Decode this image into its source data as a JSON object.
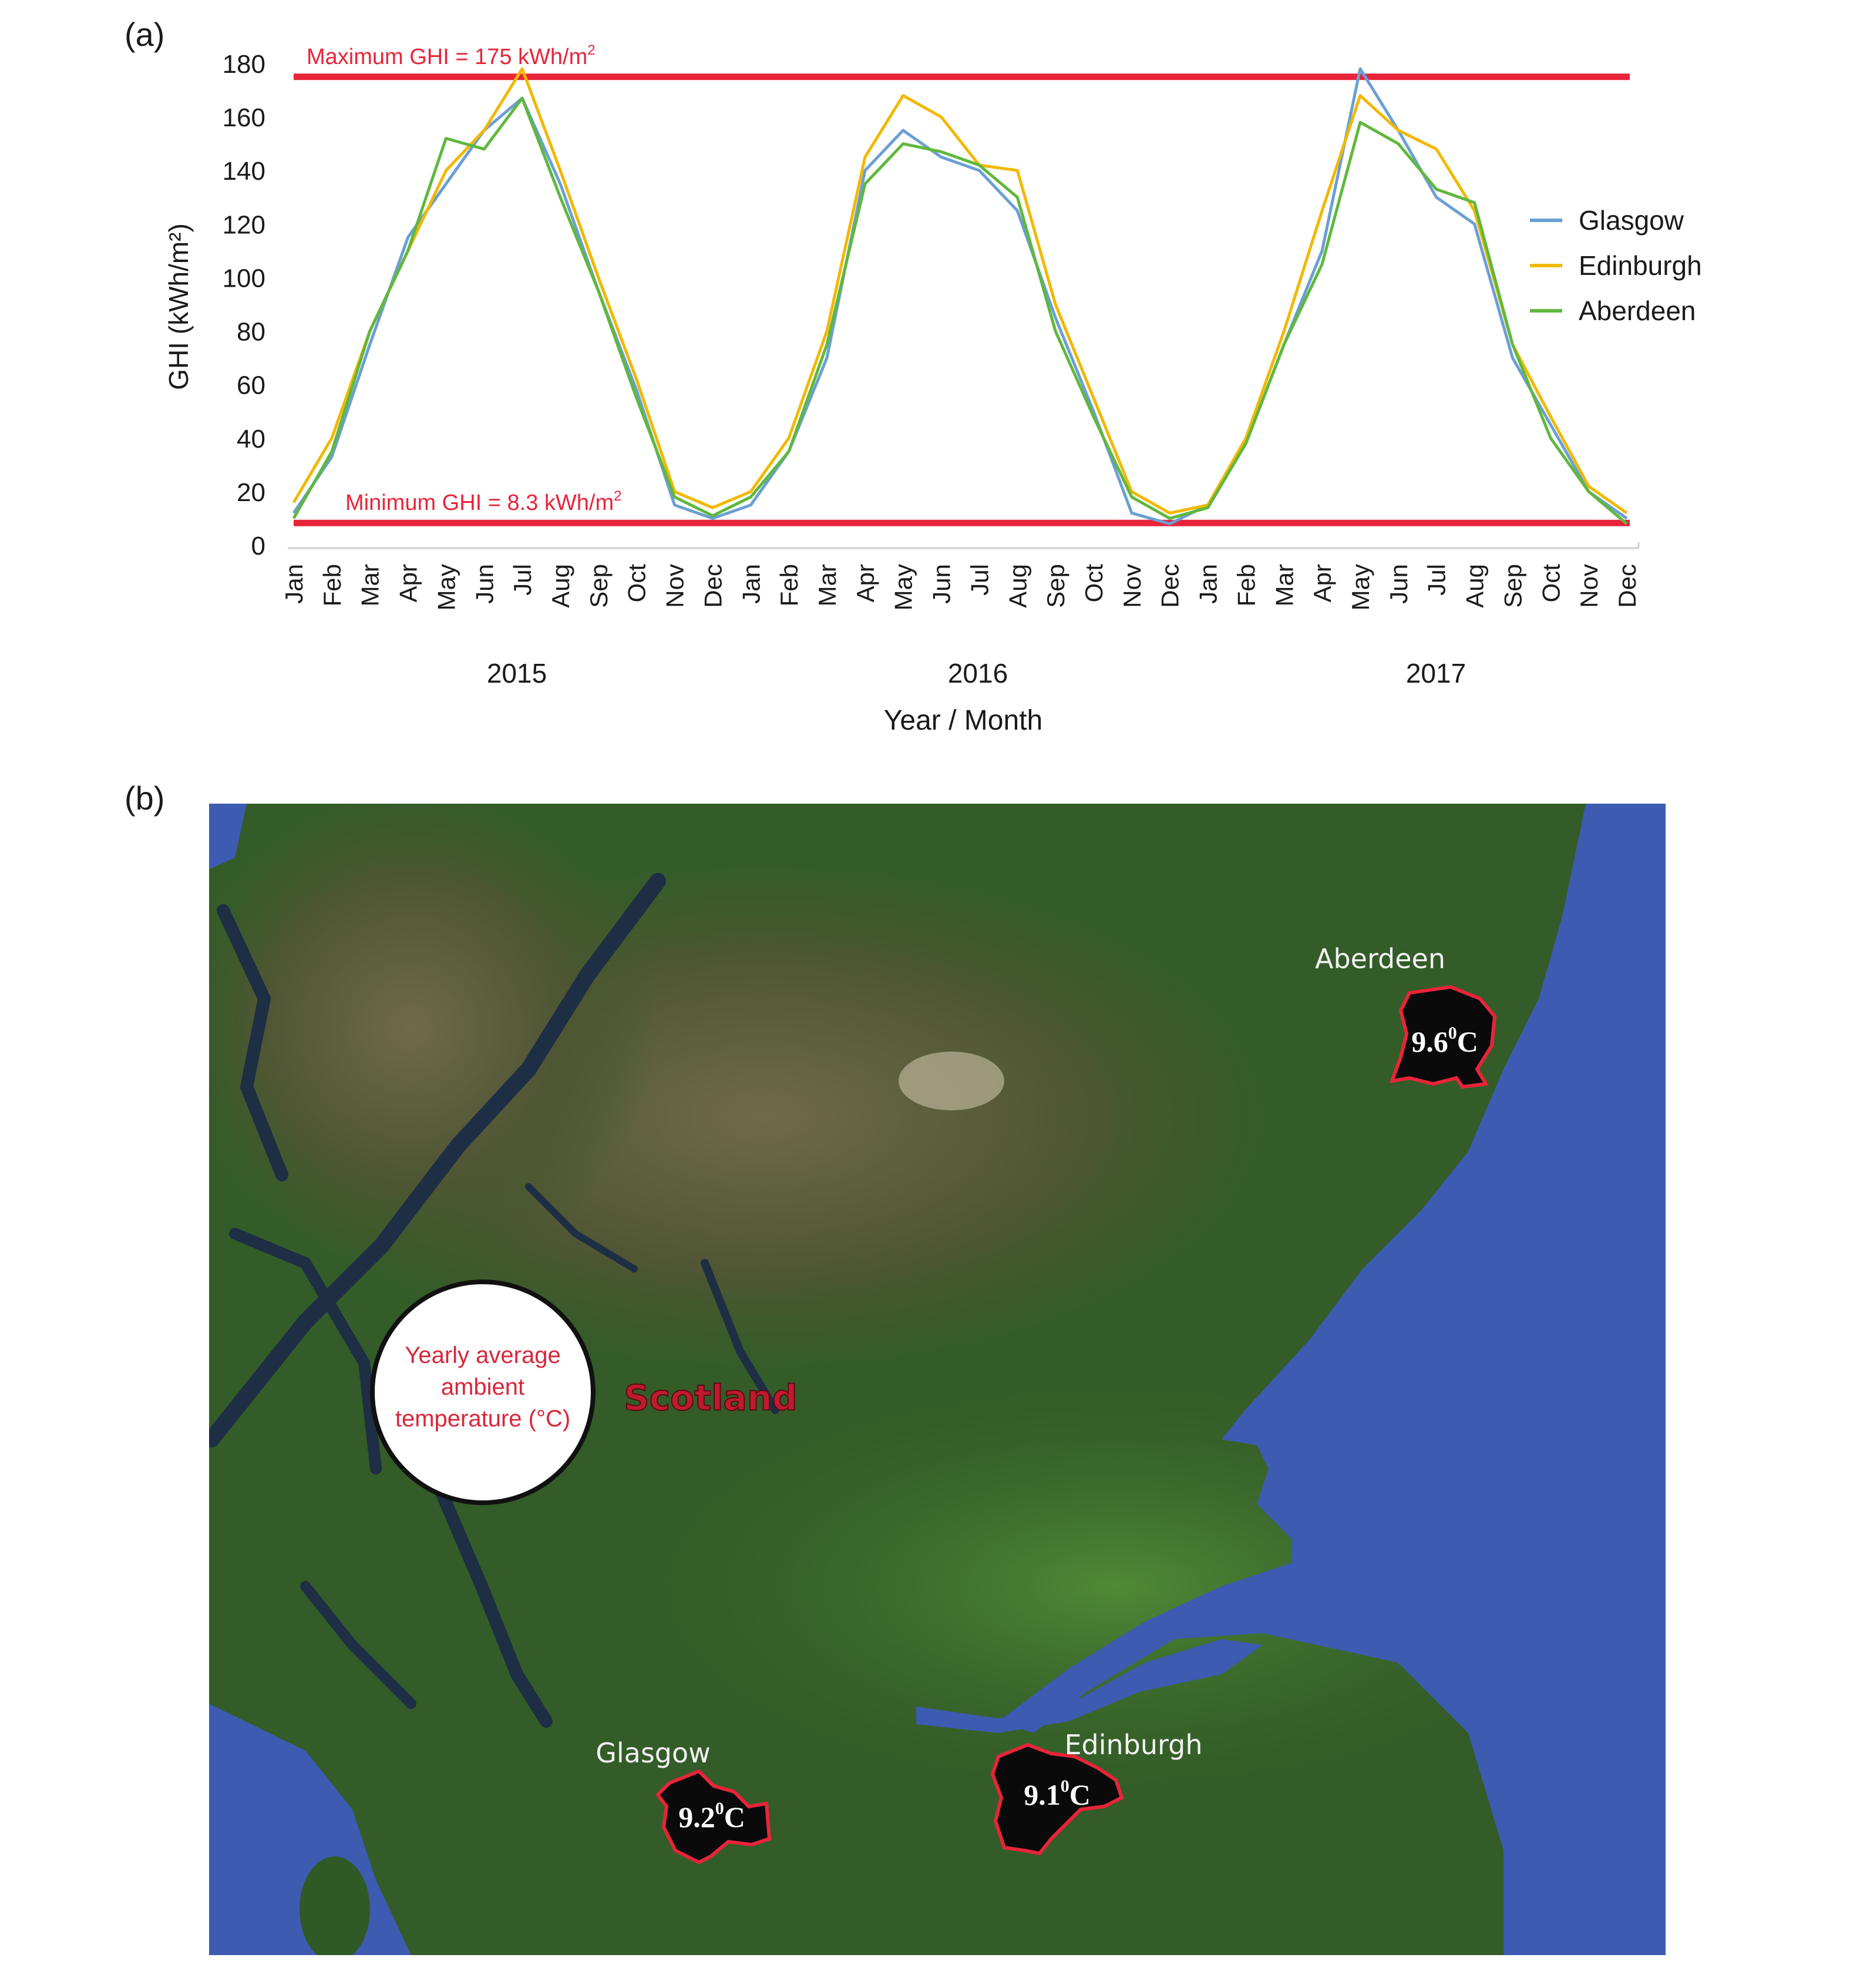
{
  "panel_a": {
    "label": "(a)"
  },
  "panel_b": {
    "label": "(b)"
  },
  "chart_data": {
    "type": "line",
    "ylabel": "GHI (kWh/m²)",
    "xlabel": "Year / Month",
    "ylim": [
      0,
      180
    ],
    "yticks": [
      0,
      20,
      40,
      60,
      80,
      100,
      120,
      140,
      160,
      180
    ],
    "grid": false,
    "legend_position": "right",
    "months": [
      "Jan",
      "Feb",
      "Mar",
      "Apr",
      "May",
      "Jun",
      "Jul",
      "Aug",
      "Sep",
      "Oct",
      "Nov",
      "Dec"
    ],
    "years": [
      "2015",
      "2016",
      "2017"
    ],
    "series": [
      {
        "name": "Glasgow",
        "color": "#6a9fd3",
        "values": [
          12,
          33,
          75,
          115,
          135,
          155,
          167,
          135,
          95,
          58,
          15,
          10,
          15,
          35,
          70,
          140,
          155,
          145,
          140,
          125,
          85,
          50,
          12,
          8,
          15,
          38,
          75,
          110,
          178,
          155,
          130,
          120,
          70,
          45,
          20,
          10
        ]
      },
      {
        "name": "Edinburgh",
        "color": "#f2b800",
        "values": [
          16,
          40,
          80,
          110,
          140,
          155,
          178,
          140,
          100,
          62,
          20,
          14,
          20,
          40,
          80,
          145,
          168,
          160,
          142,
          140,
          90,
          55,
          20,
          12,
          15,
          40,
          80,
          125,
          168,
          155,
          148,
          125,
          75,
          48,
          22,
          12
        ]
      },
      {
        "name": "Aberdeen",
        "color": "#5fb83d",
        "values": [
          10,
          35,
          80,
          110,
          152,
          148,
          167,
          130,
          95,
          55,
          18,
          11,
          18,
          35,
          75,
          135,
          150,
          147,
          142,
          130,
          80,
          48,
          18,
          10,
          14,
          38,
          75,
          105,
          158,
          150,
          133,
          128,
          75,
          40,
          20,
          8
        ]
      }
    ],
    "reference_lines": [
      {
        "value": 175,
        "label": "Maximum GHI = 175 kWh/m",
        "sup": "2",
        "color": "#e8243a"
      },
      {
        "value": 8.3,
        "label": "Minimum GHI = 8.3 kWh/m",
        "sup": "2",
        "color": "#e8243a"
      }
    ]
  },
  "map": {
    "region_label": "Scotland",
    "legend_circle_lines": [
      "Yearly average",
      "ambient",
      "temperature (°C)"
    ],
    "cities": [
      {
        "name": "Aberdeen",
        "temperature": "9.6",
        "unit": "C",
        "degree_sup": "0"
      },
      {
        "name": "Glasgow",
        "temperature": "9.2",
        "unit": "C",
        "degree_sup": "0"
      },
      {
        "name": "Edinburgh",
        "temperature": "9.1",
        "unit": "C",
        "degree_sup": "0"
      }
    ],
    "colors": {
      "land": "#2f5a26",
      "highland": "#4b5a33",
      "sea": "#3d5bb0",
      "loch": "#1e2e44",
      "city_fill": "#0a0a0a",
      "city_outline": "#e8243a"
    }
  }
}
